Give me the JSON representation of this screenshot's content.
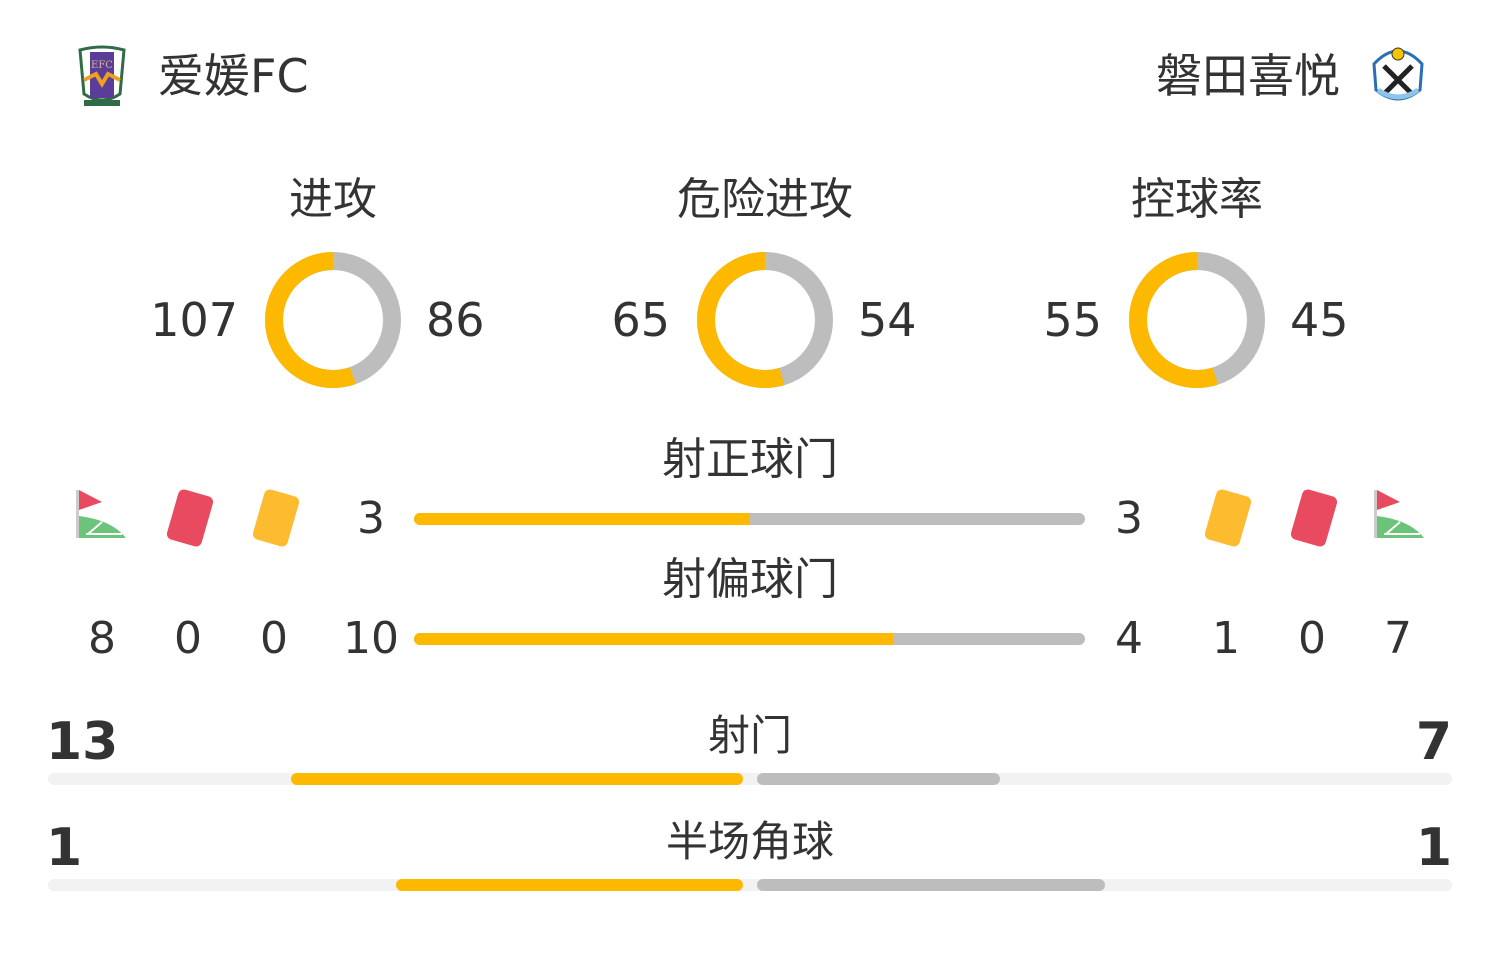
{
  "colors": {
    "home": "#fdb900",
    "away": "#bdbdbd",
    "track": "#f2f2f2"
  },
  "home": {
    "name": "爱媛FC",
    "logo": "EFC"
  },
  "away": {
    "name": "磐田喜悦",
    "logo": "Jubilo"
  },
  "donuts": [
    {
      "label": "进攻",
      "home": 107,
      "away": 86
    },
    {
      "label": "危险进攻",
      "home": 65,
      "away": 54
    },
    {
      "label": "控球率",
      "home": 55,
      "away": 45
    }
  ],
  "bars": [
    {
      "label": "射正球门",
      "home": 3,
      "away": 3
    },
    {
      "label": "射偏球门",
      "home": 10,
      "away": 4
    }
  ],
  "events": {
    "icons": [
      "corner-flag-icon",
      "red-card-icon",
      "yellow-card-icon"
    ],
    "home": {
      "corners": 8,
      "red": 0,
      "yellow": 0
    },
    "away": {
      "corners": 7,
      "red": 0,
      "yellow": 1
    }
  },
  "totals": [
    {
      "label": "射门",
      "home": 13,
      "away": 7
    },
    {
      "label": "半场角球",
      "home": 1,
      "away": 1
    }
  ]
}
